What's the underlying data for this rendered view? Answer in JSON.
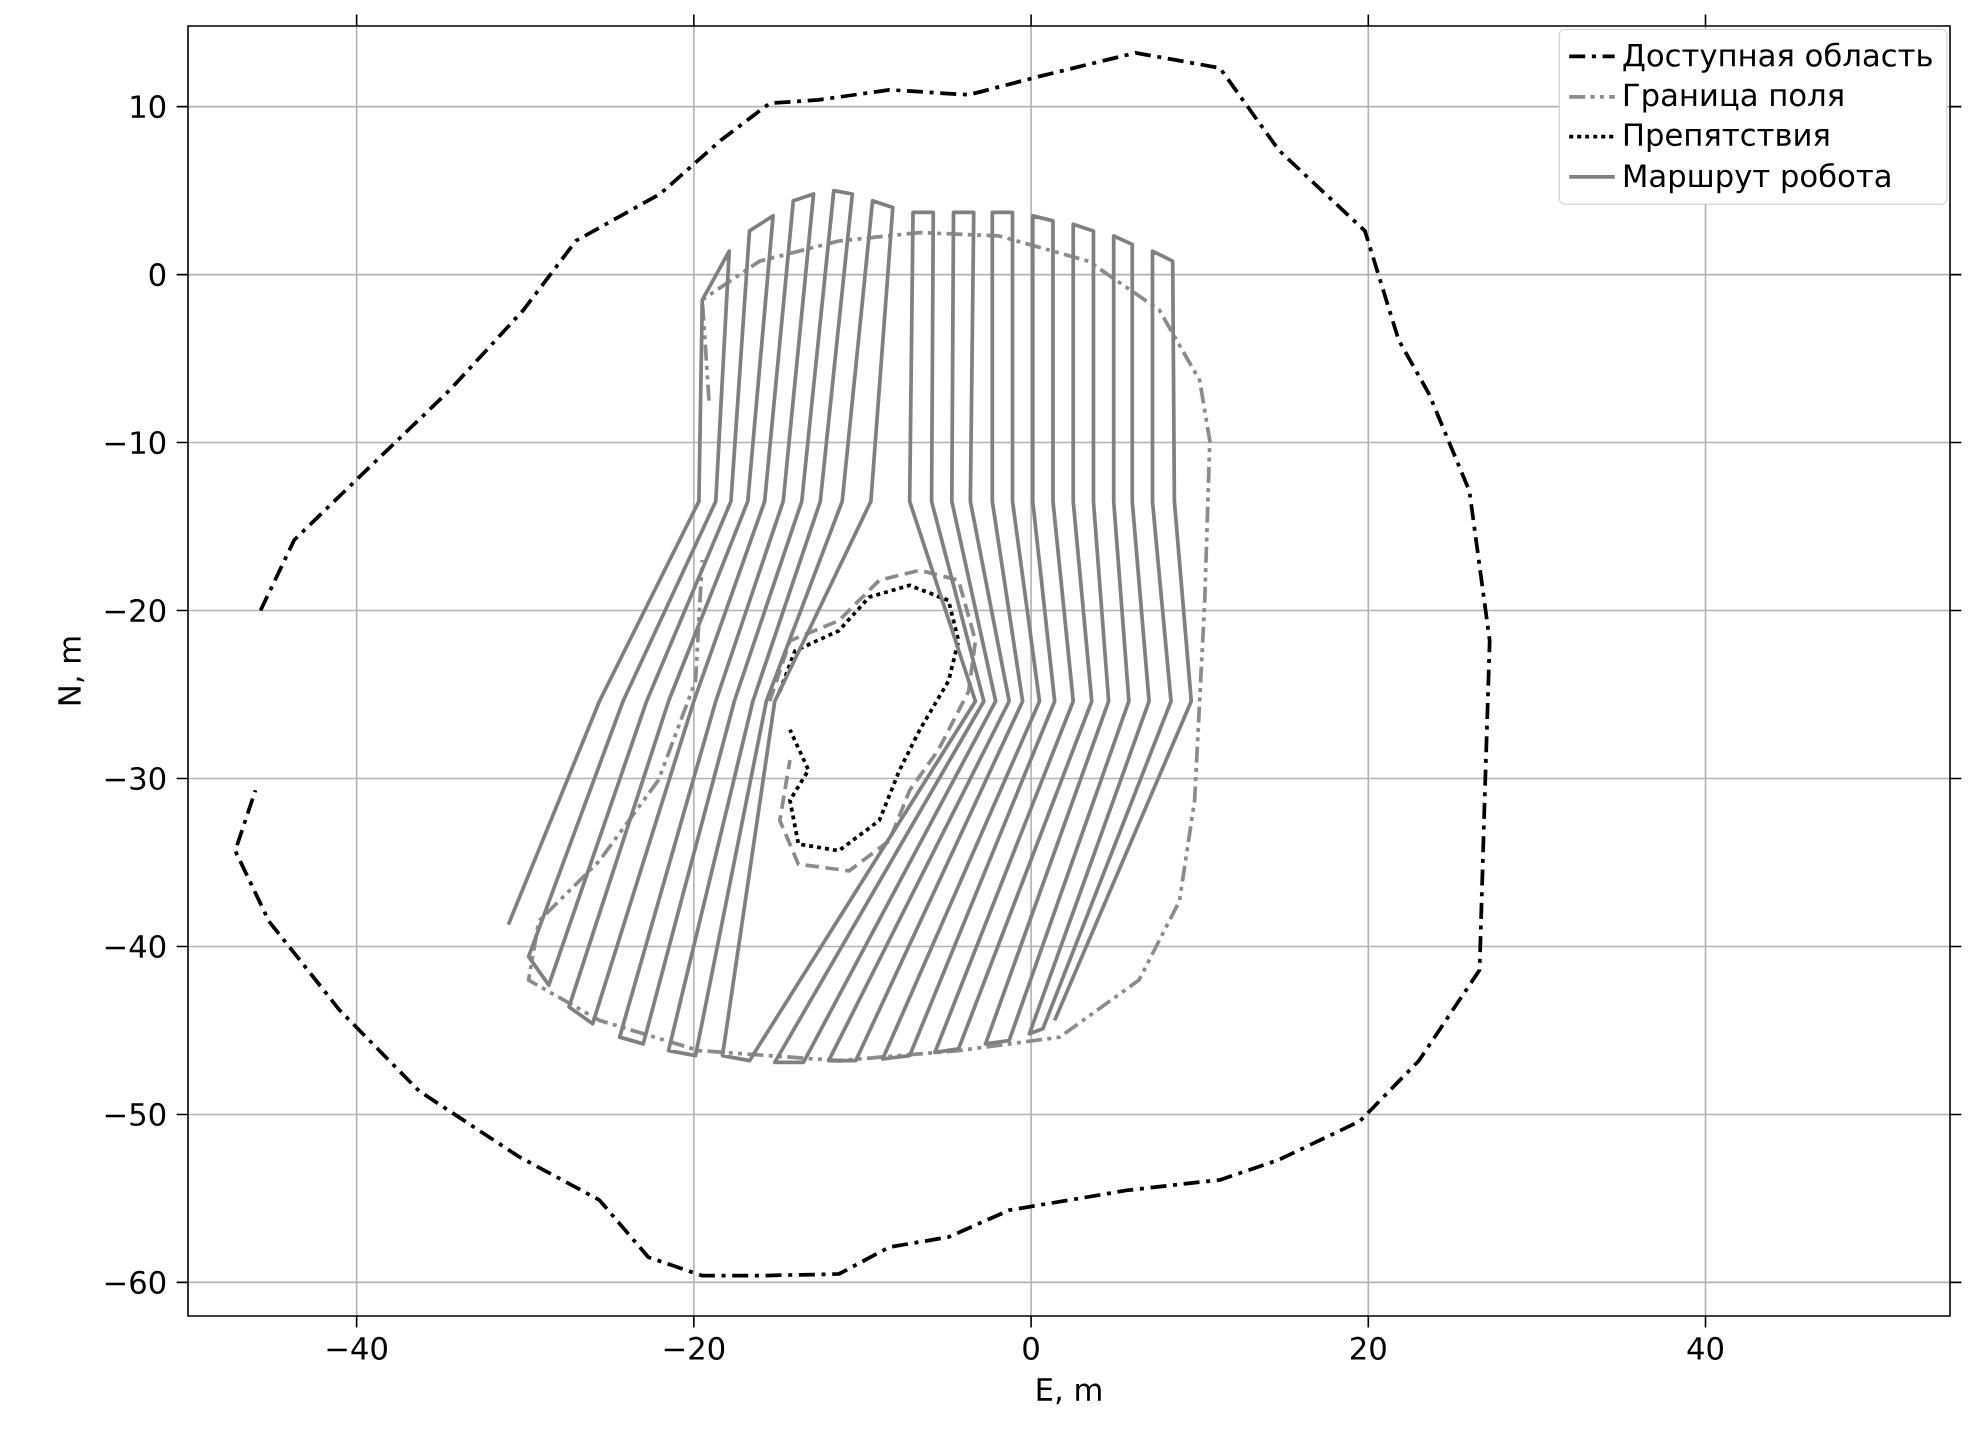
{
  "chart_data": {
    "type": "line",
    "xlabel": "E, m",
    "ylabel": "N, m",
    "xlim": [
      -50,
      54.5
    ],
    "ylim": [
      -62,
      14.8
    ],
    "xticks": [
      {
        "value": -40,
        "label": "−40"
      },
      {
        "value": -20,
        "label": "−20"
      },
      0,
      20,
      40
    ],
    "yticks": [
      {
        "value": -60,
        "label": "−60"
      },
      {
        "value": -50,
        "label": "−50"
      },
      {
        "value": -40,
        "label": "−40"
      },
      {
        "value": -30,
        "label": "−30"
      },
      {
        "value": -20,
        "label": "−20"
      },
      {
        "value": -10,
        "label": "−10"
      },
      0,
      10
    ],
    "grid": true,
    "legend": "top right",
    "series": [
      {
        "name": "Доступная область",
        "color": "#000000",
        "line_style": "dashdot",
        "x": [
          -45.7,
          -43.7,
          -40.1,
          -34.5,
          -30.1,
          -27,
          -22,
          -18.4,
          -15.5,
          -12.6,
          -8.4,
          -3.7,
          0.5,
          6.2,
          11.2,
          14.7,
          19.8,
          21.8,
          23.6,
          26,
          27.2,
          26.9,
          26.6,
          23,
          19.5,
          14.7,
          11.2,
          5.8,
          -1.3,
          -4.9,
          -8.4,
          -11.4,
          -16.1,
          -19.5,
          -22.7,
          -25.6,
          -30.4,
          -36.3,
          -41,
          -45.2,
          -47.2,
          -46
        ],
        "values": [
          -20,
          -15.8,
          -12.3,
          -6.9,
          -2.1,
          2,
          4.8,
          8,
          10.2,
          10.4,
          11,
          10.7,
          11.8,
          13.2,
          12.3,
          7.4,
          2.6,
          -3.9,
          -7.1,
          -12.9,
          -21.8,
          -31.3,
          -41.4,
          -46.8,
          -50.4,
          -52.7,
          -53.9,
          -54.5,
          -55.7,
          -57.3,
          -57.9,
          -59.5,
          -59.6,
          -59.6,
          -58.5,
          -55.1,
          -52.5,
          -48.6,
          -43.8,
          -38.5,
          -34.3,
          -30.7
        ]
      },
      {
        "name": "Граница поля",
        "color": "#8c8c8c",
        "line_style": "dashdotdot",
        "x": [
          -19.1,
          -19.5,
          -16.1,
          -11.4,
          -6.6,
          -1.9,
          3.4,
          7.6,
          10,
          10.6,
          10.3,
          9.7,
          8.8,
          6.4,
          1.7,
          -4.3,
          -11.4,
          -19.7,
          -25.6,
          -29.8,
          -29.2,
          -25.6,
          -22.1,
          -19.9,
          -19.5
        ],
        "values": [
          -7.5,
          -1.5,
          0.8,
          2,
          2.5,
          2.3,
          0.8,
          -2.1,
          -6.3,
          -9.9,
          -19.4,
          -31.3,
          -37.3,
          -42,
          -45.4,
          -46.2,
          -46.8,
          -46.2,
          -44.4,
          -42,
          -38.5,
          -34.9,
          -30.1,
          -24.2,
          -17
        ]
      },
      {
        "color": "#8c8c8c",
        "line_style": "dashed",
        "x": [
          -15.5,
          -14.3,
          -11.4,
          -9,
          -6.6,
          -4.3,
          -3.3,
          -3.7,
          -5.5,
          -7.2,
          -8.4,
          -10.8,
          -13.8,
          -14.9,
          -14.3
        ],
        "values": [
          -25.4,
          -21.8,
          -20.6,
          -18.2,
          -17.6,
          -18.2,
          -21.8,
          -24.8,
          -28.3,
          -30.7,
          -33.7,
          -35.5,
          -35.1,
          -32.5,
          -28.9
        ]
      },
      {
        "name": "Препятствия",
        "color": "#000000",
        "line_style": "dotted",
        "x": [
          -14.9,
          -14,
          -11.4,
          -9.6,
          -7.2,
          -4.9,
          -4.3,
          -4.9,
          -6.6,
          -7.8,
          -9,
          -11.4,
          -13.8,
          -14.3,
          -13.2,
          -14.3
        ],
        "values": [
          -24.8,
          -22.4,
          -21.2,
          -19.2,
          -18.5,
          -19.4,
          -21.8,
          -24.2,
          -27.1,
          -29.5,
          -32.5,
          -34.3,
          -33.9,
          -31.3,
          -29.5,
          -27.1
        ]
      },
      {
        "name": "Маршрут робота",
        "color": "#808080",
        "line_style": "solid",
        "x": [
          -31.0,
          -25.6,
          -19.7,
          -19.5,
          -17.9,
          -18.7,
          -24.2,
          -29.8,
          -28.6,
          -22.8,
          -17.8,
          -16.7,
          -15.3,
          -16.8,
          -21.5,
          -27.4,
          -26.0,
          -20.0,
          -15.8,
          -14.1,
          -12.9,
          -14.7,
          -18.7,
          -24.4,
          -23.0,
          -17.6,
          -13.6,
          -11.7,
          -10.6,
          -12.5,
          -16.5,
          -21.5,
          -19.9,
          -15.7,
          -11.2,
          -9.4,
          -8.2,
          -9.5,
          -15.2,
          -18.3,
          -16.7,
          -3.3,
          -7.2,
          -7.0,
          -5.8,
          -5.9,
          -2.8,
          -15.2,
          -13.5,
          -2.1,
          -4.7,
          -4.6,
          -3.4,
          -3.6,
          -1.3,
          -12.0,
          -10.4,
          -0.5,
          -2.3,
          -2.3,
          -1.1,
          -1.1,
          0.5,
          -8.8,
          -7.2,
          1.4,
          0.1,
          0.1,
          1.3,
          1.3,
          2.5,
          -5.7,
          -4.3,
          3.6,
          2.5,
          2.5,
          3.7,
          3.7,
          4.6,
          -2.7,
          -1.3,
          5.8,
          4.9,
          4.9,
          6.0,
          6.0,
          7.0,
          -0.1,
          0.7,
          8.3,
          7.2,
          7.2,
          8.4,
          8.5,
          9.5,
          1.4
        ],
        "values": [
          -38.7,
          -25.4,
          -13.5,
          -1.5,
          1.4,
          -13.5,
          -25.4,
          -40.6,
          -42.3,
          -25.4,
          -13.5,
          2.6,
          3.5,
          -13.5,
          -25.4,
          -43.6,
          -44.6,
          -25.4,
          -13.5,
          4.4,
          4.8,
          -13.5,
          -25.4,
          -45.4,
          -45.8,
          -25.4,
          -13.5,
          5.0,
          4.8,
          -13.5,
          -25.4,
          -46.2,
          -46.5,
          -25.4,
          -13.5,
          4.4,
          4.0,
          -13.5,
          -25.4,
          -46.5,
          -46.8,
          -25.4,
          -13.5,
          3.7,
          3.7,
          -13.5,
          -25.4,
          -46.9,
          -46.9,
          -25.4,
          -13.5,
          3.7,
          3.7,
          -13.5,
          -25.4,
          -46.8,
          -46.8,
          -25.4,
          -13.5,
          3.7,
          3.7,
          -13.5,
          -25.4,
          -46.7,
          -46.5,
          -25.4,
          -13.5,
          3.5,
          3.2,
          -13.5,
          -25.4,
          -46.3,
          -46.1,
          -25.4,
          -13.5,
          3.0,
          2.6,
          -13.5,
          -25.4,
          -45.8,
          -45.6,
          -25.4,
          -13.5,
          2.3,
          1.8,
          -13.5,
          -25.4,
          -45.2,
          -44.9,
          -25.4,
          -13.5,
          1.4,
          0.8,
          -13.5,
          -25.4,
          -44.4
        ]
      }
    ]
  }
}
